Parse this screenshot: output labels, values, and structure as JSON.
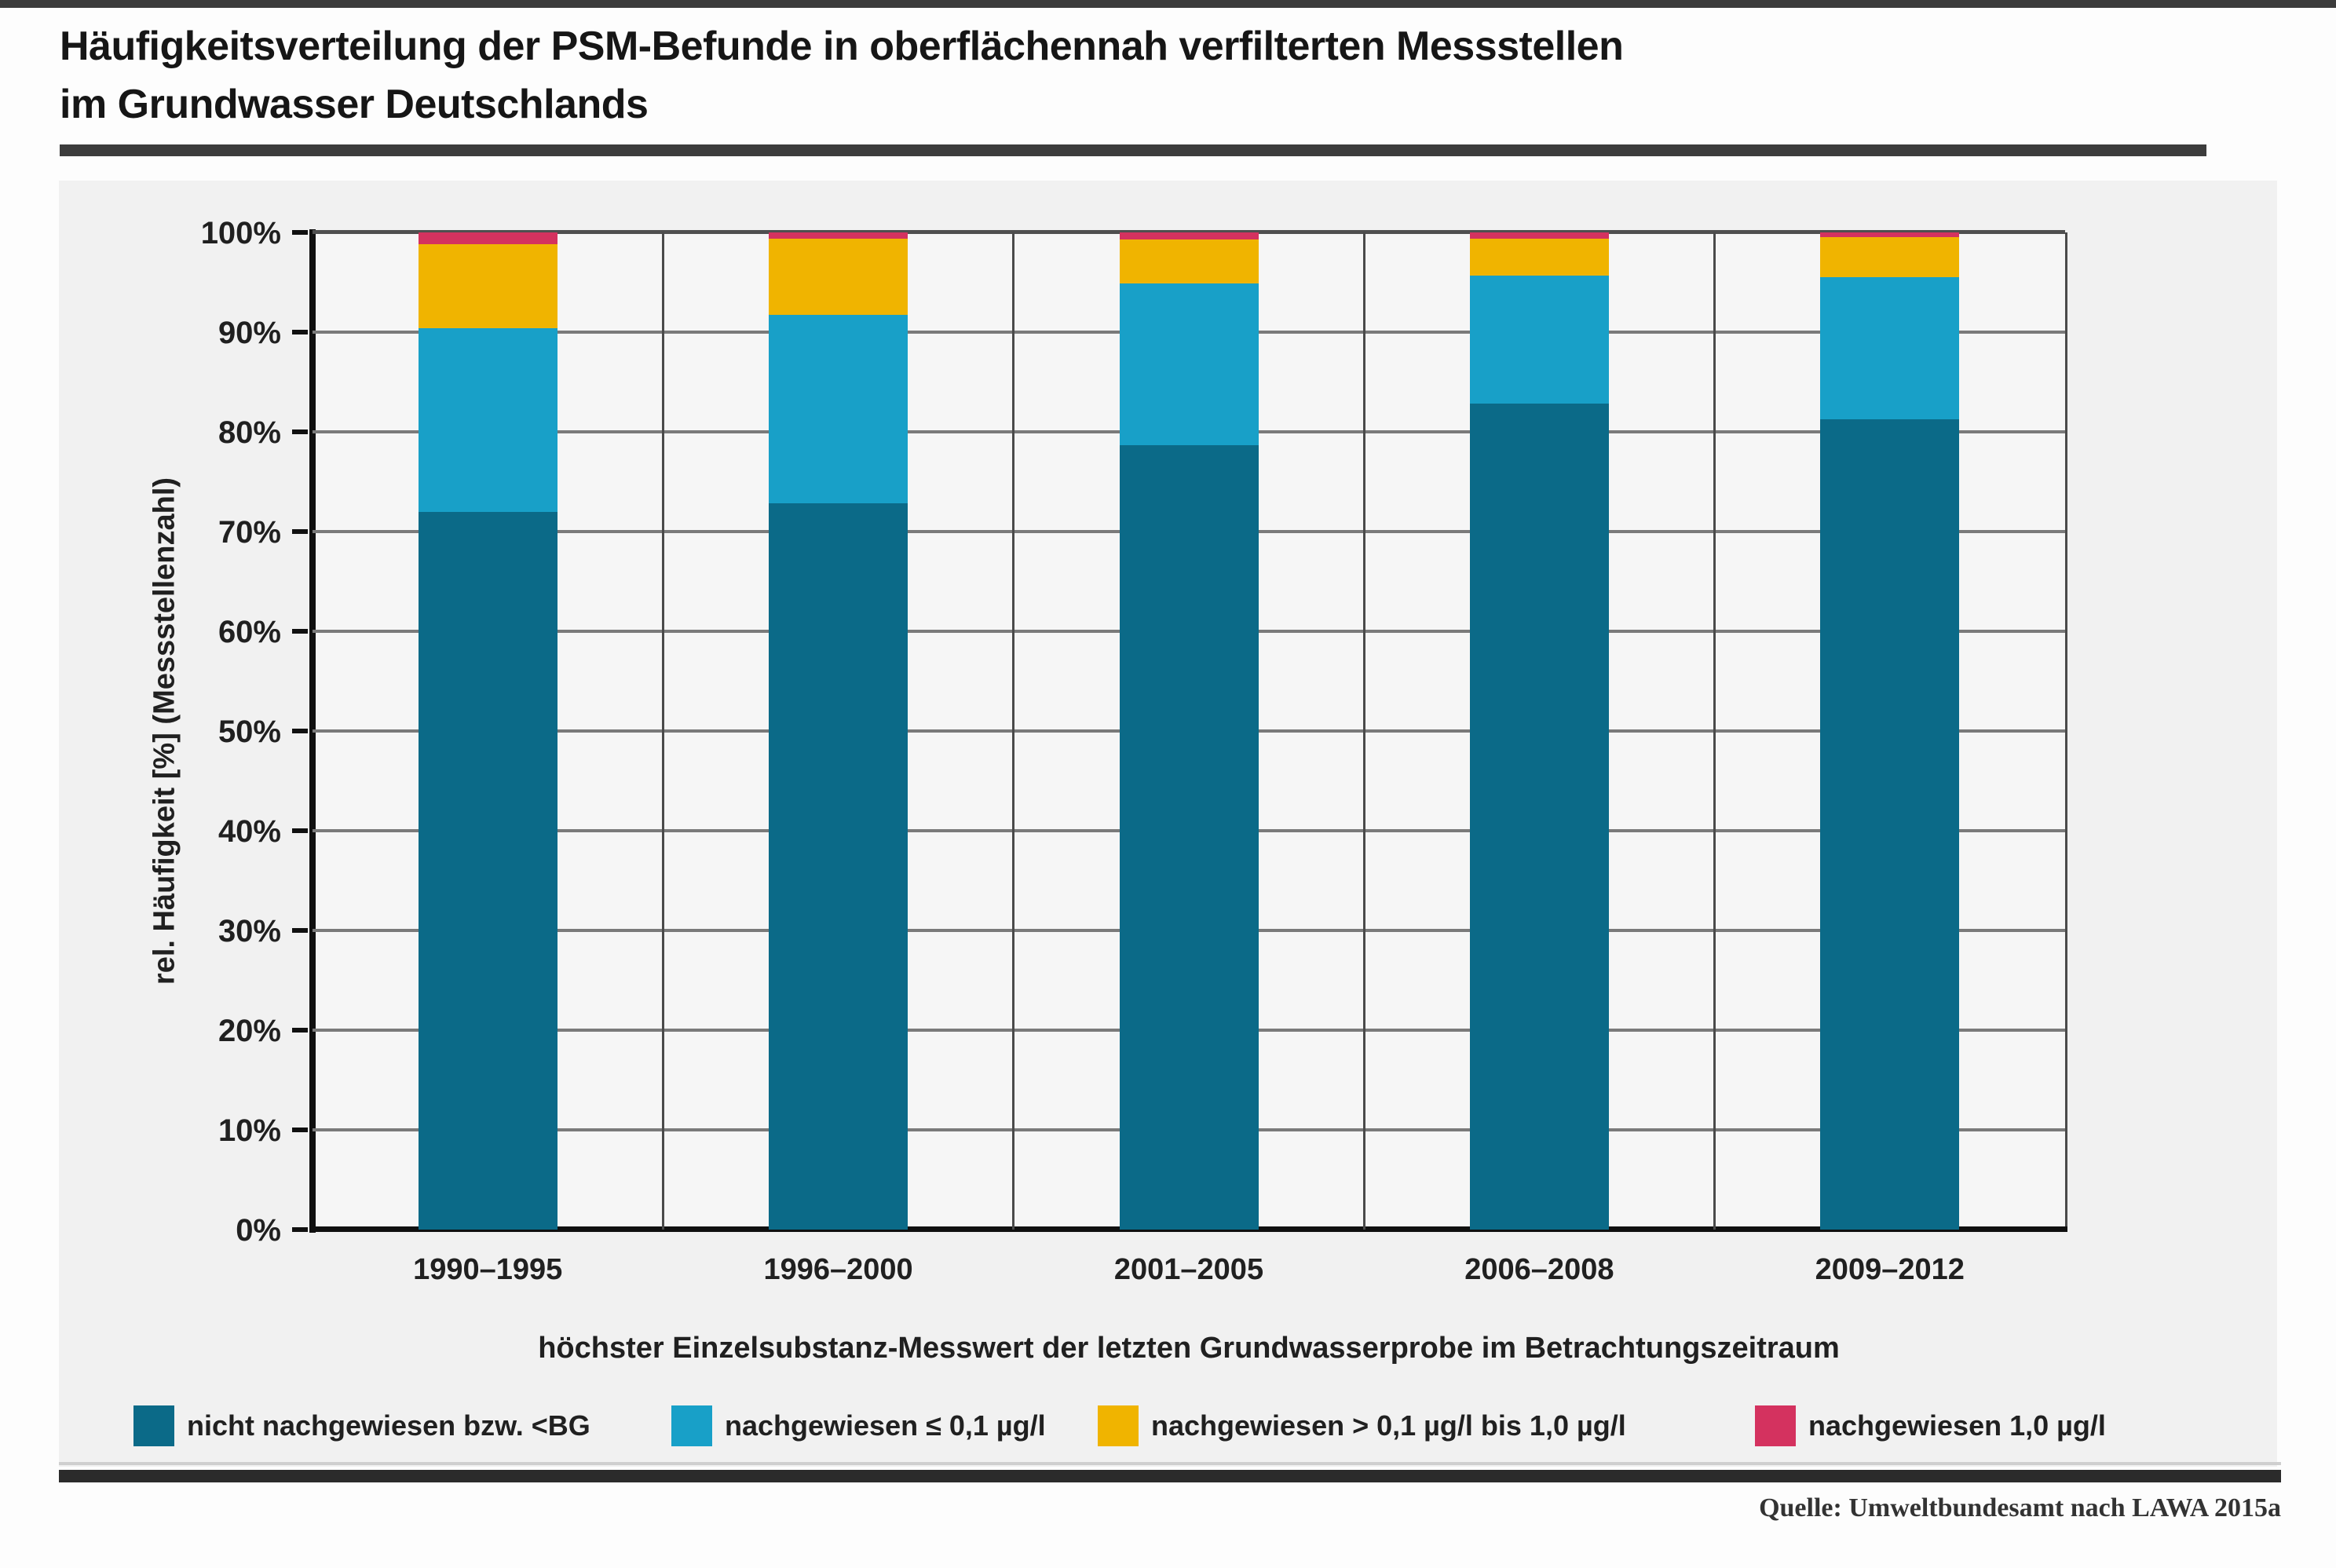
{
  "page": {
    "title_line1": "Häufigkeitsverteilung der PSM-Befunde in oberflächennah verfilterten Messstellen",
    "title_line2": "im Grundwasser Deutschlands",
    "source": "Quelle: Umweltbundesamt nach LAWA 2015a"
  },
  "colors": {
    "dark_blue": "#0B6A88",
    "light_blue": "#18A0C8",
    "yellow": "#F0B400",
    "pink_red": "#D4325F",
    "panel_gray": "#f1f1f1",
    "gridline_gray": "#7a7a7a"
  },
  "chart_data": {
    "type": "bar",
    "stacked": true,
    "title": "Häufigkeitsverteilung der PSM-Befunde in oberflächennah verfilterten Messstellen im Grundwasser Deutschlands",
    "categories": [
      "1990–1995",
      "1996–2000",
      "2001–2005",
      "2006–2008",
      "2009–2012"
    ],
    "series": [
      {
        "name": "nicht nachgewiesen bzw. <BG",
        "color": "#0B6A88",
        "values": [
          72.0,
          72.8,
          78.7,
          82.8,
          81.3
        ]
      },
      {
        "name": "nachgewiesen ≤ 0,1 µg/l",
        "color": "#18A0C8",
        "values": [
          18.4,
          18.9,
          16.2,
          12.9,
          14.2
        ]
      },
      {
        "name": "nachgewiesen > 0,1 µg/l bis 1,0 µg/l",
        "color": "#F0B400",
        "values": [
          8.4,
          7.7,
          4.4,
          3.7,
          4.0
        ]
      },
      {
        "name": "nachgewiesen 1,0 µg/l",
        "color": "#D4325F",
        "values": [
          1.2,
          0.6,
          0.7,
          0.6,
          0.5
        ]
      }
    ],
    "xlabel": "höchster Einzelsubstanz-Messwert der letzten Grundwasserprobe im Betrachtungszeitraum",
    "ylabel": "rel. Häufigkeit [%] (Messstellenzahl)",
    "ylim": [
      0,
      100
    ],
    "ytick_step": 10,
    "ytick_format": "percent",
    "grid": true,
    "legend_position": "bottom",
    "units": "% der Messstellen"
  }
}
